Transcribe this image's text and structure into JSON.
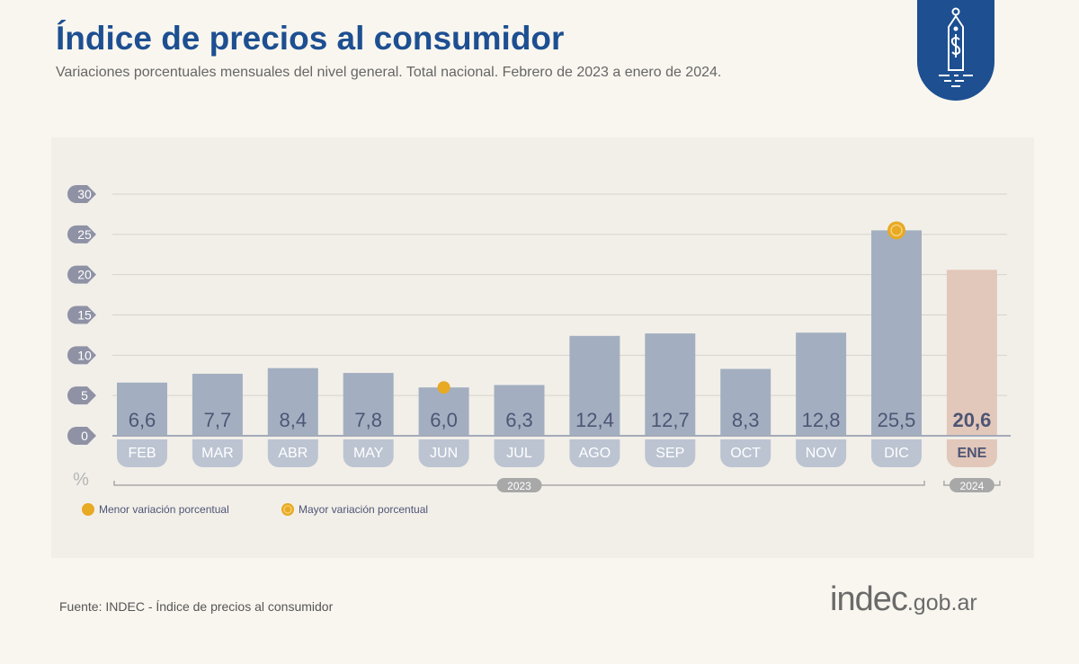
{
  "header": {
    "title": "Índice de precios al consumidor",
    "subtitle": "Variaciones porcentuales mensuales del nivel general. Total nacional. Febrero de 2023 a enero de 2024.",
    "icon": "price-tag-dollar-icon"
  },
  "chart_data": {
    "type": "bar",
    "categories": [
      "FEB",
      "MAR",
      "ABR",
      "MAY",
      "JUN",
      "JUL",
      "AGO",
      "SEP",
      "OCT",
      "NOV",
      "DIC",
      "ENE"
    ],
    "values": [
      6.6,
      7.7,
      8.4,
      7.8,
      6.0,
      6.3,
      12.4,
      12.7,
      8.3,
      12.8,
      25.5,
      20.6
    ],
    "value_labels": [
      "6,6",
      "7,7",
      "8,4",
      "7,8",
      "6,0",
      "6,3",
      "12,4",
      "12,7",
      "8,3",
      "12,8",
      "25,5",
      "20,6"
    ],
    "year_groups": [
      {
        "label": "2023",
        "from": "FEB",
        "to": "DIC"
      },
      {
        "label": "2024",
        "from": "ENE",
        "to": "ENE"
      }
    ],
    "yticks": [
      0,
      5,
      10,
      15,
      20,
      25,
      30
    ],
    "ylim": [
      0,
      30
    ],
    "ylabel": "%",
    "grid": true,
    "highlight": {
      "min": "JUN",
      "max": "DIC",
      "latest": "ENE"
    },
    "legend": [
      {
        "label": "Menor variación porcentual",
        "marker": "dot"
      },
      {
        "label": "Mayor variación porcentual",
        "marker": "ring"
      }
    ],
    "legend_placement": "bottom-left",
    "colors": {
      "bar": "#a3afc0",
      "bar_latest": "#e2c8ba",
      "tab": "#bcc4d2",
      "tick_badge": "#8f92a5",
      "marker": "#e8a923",
      "value_text": "#4e5575",
      "title": "#1d4f91"
    }
  },
  "footer": {
    "source": "Fuente: INDEC - Índice de precios al consumidor",
    "logo_main": "indec",
    "logo_domain": ".gob.ar"
  }
}
